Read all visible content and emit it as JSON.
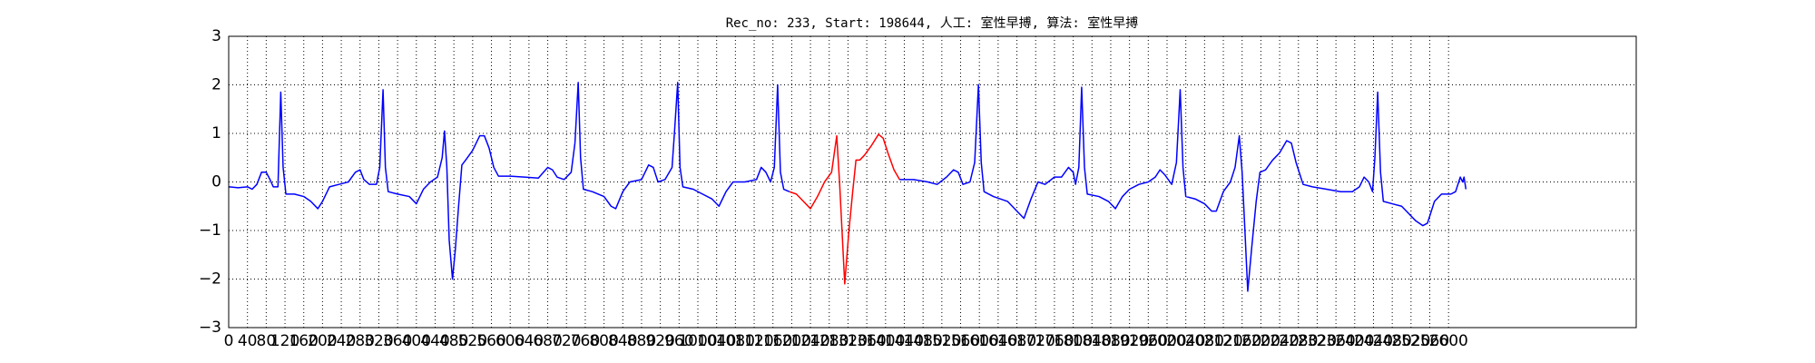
{
  "chart_data": {
    "type": "line",
    "title": "Rec_no: 233, Start: 198644, 人工: 室性早搏, 算法: 室性早搏",
    "xlim": [
      0,
      3000
    ],
    "ylim": [
      -3,
      3
    ],
    "xticks": [
      0,
      40,
      80,
      120,
      160,
      200,
      240,
      280,
      320,
      360,
      400,
      440,
      480,
      520,
      560,
      600,
      640,
      680,
      720,
      760,
      800,
      840,
      880,
      920,
      960,
      1000,
      1040,
      1080,
      1120,
      1160,
      1200,
      1240,
      1280,
      1320,
      1360,
      1400,
      1440,
      1480,
      1520,
      1560,
      1600,
      1640,
      1680,
      1720,
      1760,
      1800,
      1840,
      1880,
      1920,
      1960,
      2000,
      2040,
      2080,
      2120,
      2160,
      2200,
      2240,
      2280,
      2320,
      2360,
      2400,
      2440,
      2480,
      2520,
      2560,
      2600
    ],
    "yticks": [
      {
        "value": -3,
        "label": "−3"
      },
      {
        "value": -2,
        "label": "−2"
      },
      {
        "value": -1,
        "label": "−1"
      },
      0,
      1,
      2,
      3
    ],
    "grid": true,
    "series": [
      {
        "color": "#0000ff",
        "x": [
          0,
          20,
          40,
          50,
          60,
          70,
          80,
          88,
          95,
          105,
          111,
          116,
          122,
          140,
          160,
          175,
          190,
          200,
          215,
          235,
          255,
          270,
          280,
          288,
          300,
          315,
          322,
          329,
          334,
          340,
          360,
          385,
          400,
          415,
          430,
          445,
          455,
          460,
          465,
          470,
          477,
          483,
          490,
          497,
          505,
          520,
          535,
          545,
          555,
          565,
          575,
          600,
          630,
          660,
          680,
          690,
          700,
          715,
          730,
          738,
          745,
          750,
          756,
          775,
          800,
          815,
          825,
          840,
          855,
          880,
          895,
          905,
          915,
          930,
          945,
          950,
          957,
          962,
          968,
          990,
          1010,
          1030,
          1045,
          1060,
          1075,
          1100,
          1125,
          1135,
          1145,
          1155,
          1163,
          1170,
          1176,
          1183,
          1195
        ],
        "values": [
          -0.1,
          -0.12,
          -0.1,
          -0.15,
          -0.05,
          0.2,
          0.2,
          0.05,
          -0.1,
          -0.1,
          1.85,
          0.3,
          -0.25,
          -0.25,
          -0.3,
          -0.4,
          -0.55,
          -0.4,
          -0.1,
          -0.05,
          0,
          0.2,
          0.25,
          0.05,
          -0.05,
          -0.05,
          0.3,
          1.9,
          0.3,
          -0.2,
          -0.25,
          -0.3,
          -0.45,
          -0.15,
          0,
          0.1,
          0.5,
          1.05,
          0.3,
          -1.2,
          -2.0,
          -1.4,
          -0.5,
          0.35,
          0.45,
          0.65,
          0.95,
          0.95,
          0.7,
          0.3,
          0.12,
          0.12,
          0.1,
          0.08,
          0.3,
          0.25,
          0.1,
          0.05,
          0.2,
          0.8,
          2.05,
          0.5,
          -0.15,
          -0.2,
          -0.3,
          -0.5,
          -0.55,
          -0.2,
          0,
          0.05,
          0.35,
          0.3,
          0,
          0.05,
          0.3,
          1.0,
          2.05,
          0.3,
          -0.1,
          -0.15,
          -0.25,
          -0.35,
          -0.5,
          -0.2,
          0,
          0,
          0.05,
          0.3,
          0.2,
          0,
          0.3,
          2.0,
          0.2,
          -0.15,
          -0.2
        ]
      },
      {
        "color": "#ff0000",
        "x": [
          1195,
          1210,
          1225,
          1240,
          1255,
          1270,
          1285,
          1296,
          1302,
          1313,
          1322,
          1330,
          1337,
          1345,
          1355,
          1370,
          1385,
          1395,
          1405,
          1418,
          1430
        ],
        "values": [
          -0.2,
          -0.25,
          -0.4,
          -0.55,
          -0.3,
          0,
          0.2,
          0.95,
          0,
          -2.1,
          -1.0,
          -0.2,
          0.45,
          0.45,
          0.55,
          0.75,
          0.98,
          0.9,
          0.6,
          0.25,
          0.05
        ]
      },
      {
        "color": "#0000ff",
        "x": [
          1430,
          1460,
          1490,
          1510,
          1530,
          1545,
          1555,
          1565,
          1580,
          1590,
          1598,
          1604,
          1610,
          1630,
          1660,
          1680,
          1695,
          1710,
          1725,
          1740,
          1760,
          1775,
          1790,
          1800,
          1805,
          1812,
          1818,
          1824,
          1830,
          1855,
          1875,
          1890,
          1905,
          1920,
          1940,
          1960,
          1975,
          1985,
          1995,
          2010,
          2020,
          2028,
          2034,
          2040,
          2060,
          2080,
          2095,
          2105,
          2120,
          2135,
          2145,
          2154,
          2160,
          2165,
          2172,
          2180,
          2190,
          2198,
          2210,
          2225,
          2240,
          2255,
          2265,
          2275,
          2290,
          2310,
          2340,
          2370,
          2395,
          2410,
          2420,
          2430,
          2438,
          2443,
          2449,
          2455,
          2461,
          2480,
          2500,
          2515,
          2530,
          2545,
          2555,
          2570,
          2585,
          2605,
          2615,
          2625,
          2630,
          2633,
          2637
        ],
        "values": [
          0.05,
          0.05,
          0,
          -0.05,
          0.1,
          0.25,
          0.2,
          -0.05,
          0,
          0.4,
          2.0,
          0.4,
          -0.2,
          -0.3,
          -0.4,
          -0.6,
          -0.75,
          -0.35,
          0,
          -0.05,
          0.1,
          0.1,
          0.3,
          0.2,
          -0.05,
          0.3,
          1.95,
          0.3,
          -0.25,
          -0.3,
          -0.4,
          -0.55,
          -0.3,
          -0.15,
          -0.05,
          0,
          0.1,
          0.25,
          0.15,
          -0.05,
          0.4,
          1.9,
          0.3,
          -0.3,
          -0.35,
          -0.45,
          -0.6,
          -0.6,
          -0.2,
          0,
          0.3,
          0.95,
          0.2,
          -0.8,
          -2.25,
          -1.4,
          -0.4,
          0.2,
          0.25,
          0.45,
          0.6,
          0.85,
          0.8,
          0.4,
          -0.05,
          -0.1,
          -0.15,
          -0.2,
          -0.2,
          -0.1,
          0.1,
          0,
          -0.2,
          0.5,
          1.85,
          0.2,
          -0.4,
          -0.45,
          -0.5,
          -0.65,
          -0.8,
          -0.9,
          -0.85,
          -0.4,
          -0.25,
          -0.25,
          -0.2,
          0.1,
          0,
          0.1,
          -0.15
        ]
      }
    ]
  }
}
